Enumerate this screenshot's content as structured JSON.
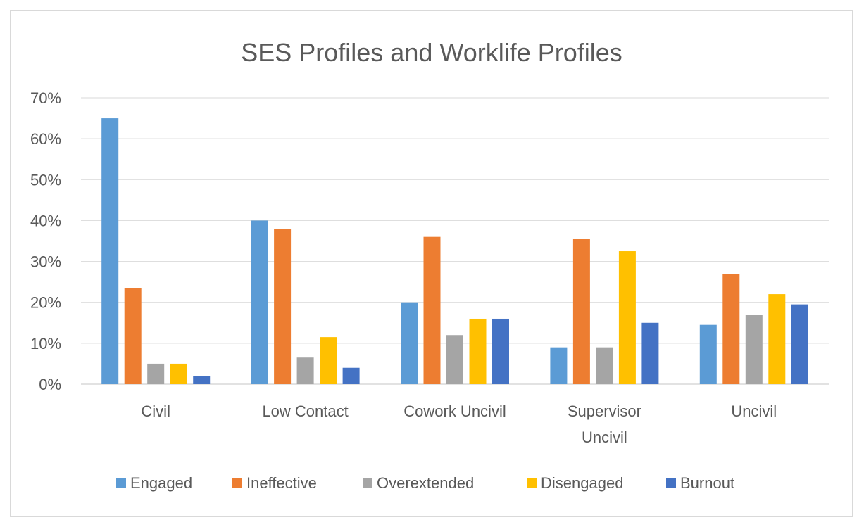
{
  "chart_data": {
    "type": "bar",
    "title": "SES Profiles and Worklife Profiles",
    "xlabel": "",
    "ylabel": "",
    "ylim": [
      0,
      70
    ],
    "y_ticks": [
      "0%",
      "10%",
      "20%",
      "30%",
      "40%",
      "50%",
      "60%",
      "70%"
    ],
    "y_tick_values": [
      0,
      10,
      20,
      30,
      40,
      50,
      60,
      70
    ],
    "grid": true,
    "legend_position": "bottom",
    "categories": [
      [
        "Civil"
      ],
      [
        "Low Contact"
      ],
      [
        "Cowork Uncivil"
      ],
      [
        "Supervisor",
        "Uncivil"
      ],
      [
        "Uncivil"
      ]
    ],
    "series": [
      {
        "name": "Engaged",
        "color": "#5b9bd5",
        "values": [
          65,
          40,
          20,
          9,
          14.5
        ]
      },
      {
        "name": "Ineffective",
        "color": "#ed7d31",
        "values": [
          23.5,
          38,
          36,
          35.5,
          27
        ]
      },
      {
        "name": "Overextended",
        "color": "#a5a5a5",
        "values": [
          5,
          6.5,
          12,
          9,
          17
        ]
      },
      {
        "name": "Disengaged",
        "color": "#ffc000",
        "values": [
          5,
          11.5,
          16,
          32.5,
          22
        ]
      },
      {
        "name": "Burnout",
        "color": "#4472c4",
        "values": [
          2,
          4,
          16,
          15,
          19.5
        ]
      }
    ],
    "gridline_color": "#d9d9d9"
  }
}
